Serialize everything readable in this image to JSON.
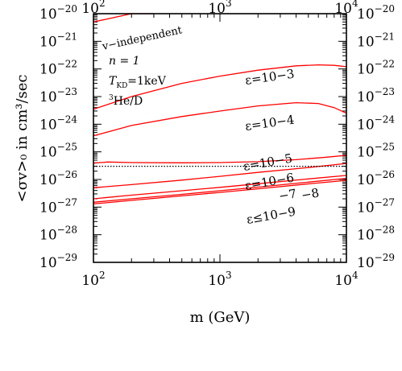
{
  "chart_data": {
    "type": "line",
    "xlabel": "m (GeV)",
    "ylabel": "<σv>₀ in cm³/sec",
    "xscale": "log",
    "yscale": "log",
    "xlim": [
      100,
      10000
    ],
    "ylim": [
      1e-29,
      1e-20
    ],
    "x_tick_labels": [
      {
        "value": 100,
        "base": "10",
        "exp": "2"
      },
      {
        "value": 1000,
        "base": "10",
        "exp": "3"
      },
      {
        "value": 10000,
        "base": "10",
        "exp": "4"
      }
    ],
    "y_tick_labels": [
      {
        "value": 1e-20,
        "base": "10",
        "exp": "−20"
      },
      {
        "value": 1e-21,
        "base": "10",
        "exp": "−21"
      },
      {
        "value": 1e-22,
        "base": "10",
        "exp": "−22"
      },
      {
        "value": 1e-23,
        "base": "10",
        "exp": "−23"
      },
      {
        "value": 1e-24,
        "base": "10",
        "exp": "−24"
      },
      {
        "value": 1e-25,
        "base": "10",
        "exp": "−25"
      },
      {
        "value": 1e-26,
        "base": "10",
        "exp": "−26"
      },
      {
        "value": 1e-27,
        "base": "10",
        "exp": "−27"
      },
      {
        "value": 1e-28,
        "base": "10",
        "exp": "−28"
      },
      {
        "value": 1e-29,
        "base": "10",
        "exp": "−29"
      }
    ],
    "annotations": {
      "v_independent": "v−independent",
      "n_line": "n = 1",
      "t_kd": "T",
      "t_kd_sub": "KD",
      "t_kd_val": "=1keV",
      "he_sup": "3",
      "he_text": "He/D"
    },
    "series": [
      {
        "label": "v−independent",
        "color": "#ff0000",
        "style": "solid",
        "points": [
          [
            100,
            5e-21
          ],
          [
            200,
            1.2e-20
          ],
          [
            300,
            2.2e-20
          ]
        ]
      },
      {
        "label": "ε=10−3",
        "color": "#ff0000",
        "style": "solid",
        "points": [
          [
            100,
            3.5e-24
          ],
          [
            200,
            1e-23
          ],
          [
            500,
            3e-23
          ],
          [
            1000,
            5.5e-23
          ],
          [
            2000,
            9e-23
          ],
          [
            4000,
            1.3e-22
          ],
          [
            6000,
            1.4e-22
          ],
          [
            8000,
            1.35e-22
          ],
          [
            10000,
            1.2e-22
          ]
        ]
      },
      {
        "label": "ε=10−4",
        "color": "#ff0000",
        "style": "solid",
        "points": [
          [
            100,
            3.8e-25
          ],
          [
            200,
            9e-25
          ],
          [
            500,
            1.9e-24
          ],
          [
            1000,
            3e-24
          ],
          [
            2000,
            4.6e-24
          ],
          [
            4000,
            6e-24
          ],
          [
            6000,
            5.6e-24
          ],
          [
            8000,
            4e-24
          ],
          [
            10000,
            2.5e-24
          ]
        ]
      },
      {
        "label": "ε=10−5",
        "color": "#ff0000",
        "style": "solid",
        "points": [
          [
            100,
            3.9e-26
          ],
          [
            130,
            4.3e-26
          ],
          [
            200,
            4.1e-26
          ],
          [
            500,
            4e-26
          ],
          [
            1000,
            4.1e-26
          ],
          [
            2000,
            4.4e-26
          ],
          [
            4000,
            5.2e-26
          ],
          [
            7000,
            6.4e-26
          ],
          [
            10000,
            7.5e-26
          ]
        ]
      },
      {
        "label": "ε=10−6",
        "color": "#ff0000",
        "style": "solid",
        "points": [
          [
            100,
            5e-27
          ],
          [
            200,
            6.5e-27
          ],
          [
            500,
            9.5e-27
          ],
          [
            1000,
            1.3e-26
          ],
          [
            2000,
            1.8e-26
          ],
          [
            5000,
            2.7e-26
          ],
          [
            10000,
            3.8e-26
          ]
        ]
      },
      {
        "label": "−7",
        "color": "#ff0000",
        "style": "solid",
        "points": [
          [
            100,
            2e-27
          ],
          [
            200,
            2.7e-27
          ],
          [
            500,
            3.9e-27
          ],
          [
            1000,
            5.2e-27
          ],
          [
            2000,
            7e-27
          ],
          [
            5000,
            1.05e-26
          ],
          [
            10000,
            1.4e-26
          ]
        ]
      },
      {
        "label": "−8",
        "color": "#ff0000",
        "style": "solid",
        "points": [
          [
            100,
            1.5e-27
          ],
          [
            200,
            2e-27
          ],
          [
            500,
            2.9e-27
          ],
          [
            1000,
            3.9e-27
          ],
          [
            2000,
            5.3e-27
          ],
          [
            5000,
            8e-27
          ],
          [
            10000,
            1.1e-26
          ]
        ]
      },
      {
        "label": "ε≤10−9",
        "color": "#ff0000",
        "style": "solid",
        "points": [
          [
            100,
            1.3e-27
          ],
          [
            200,
            1.75e-27
          ],
          [
            500,
            2.55e-27
          ],
          [
            1000,
            3.4e-27
          ],
          [
            2000,
            4.6e-27
          ],
          [
            5000,
            6.9e-27
          ],
          [
            10000,
            9.3e-27
          ]
        ]
      },
      {
        "label": "",
        "color": "#000000",
        "style": "dotted",
        "points": [
          [
            100,
            3e-26
          ],
          [
            10000,
            3e-26
          ]
        ]
      }
    ],
    "curve_labels": {
      "e3": "ε=10−3",
      "e4": "ε=10−4",
      "e5": "ε=10−5",
      "e6": "ε=10−6",
      "e7": "−7",
      "e8": "−8",
      "e9": "ε≤10−9"
    },
    "grid": false,
    "legend": "none"
  }
}
